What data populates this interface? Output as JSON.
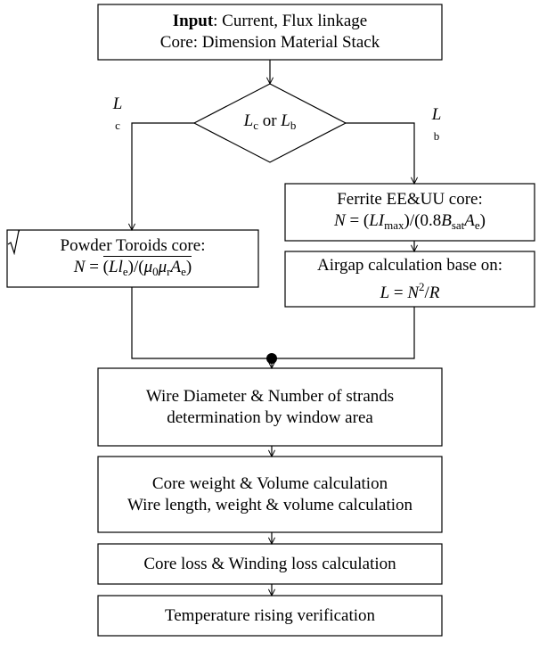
{
  "nodes": [
    {
      "lines": [
        [
          {
            "b": "Input"
          },
          {
            "t": ": Current, Flux linkage"
          }
        ],
        [
          {
            "t": "Core: Dimension Material Stack"
          }
        ]
      ]
    },
    {
      "lines": [
        [
          {
            "m": "L"
          },
          {
            "sub": "c"
          },
          {
            "t": " or "
          },
          {
            "m": "L"
          },
          {
            "sub": "b"
          }
        ]
      ]
    },
    {
      "lines": [
        [
          {
            "t": "Ferrite EE&UU core:"
          }
        ],
        [
          {
            "m": "N"
          },
          {
            "t": " = ("
          },
          {
            "m": "LI"
          },
          {
            "sub": "max"
          },
          {
            "t": ")/(0.8"
          },
          {
            "m": "B"
          },
          {
            "sub": "sat"
          },
          {
            "m": "A"
          },
          {
            "sub": "e"
          },
          {
            "t": ")"
          }
        ]
      ]
    },
    {
      "lines": [
        [
          {
            "t": "Airgap calculation base on:"
          }
        ],
        [
          {
            "m": "L"
          },
          {
            "t": " = "
          },
          {
            "m": "N"
          },
          {
            "sup": "2"
          },
          {
            "t": "/"
          },
          {
            "m": "R"
          }
        ]
      ]
    },
    {
      "lines": [
        [
          {
            "t": "Powder Toroids core:"
          }
        ],
        [
          {
            "m": "N"
          },
          {
            "t": " = "
          },
          {
            "sqrt": [
              {
                "t": "("
              },
              {
                "m": "Ll"
              },
              {
                "sub": "e"
              },
              {
                "t": ")/("
              },
              {
                "m": "μ"
              },
              {
                "sub": "0"
              },
              {
                "m": "μ"
              },
              {
                "sub": "r"
              },
              {
                "m": "A"
              },
              {
                "sub": "e"
              },
              {
                "t": ")"
              }
            ]
          }
        ]
      ]
    },
    {
      "lines": [
        [
          {
            "t": "Wire Diameter & Number of strands"
          }
        ],
        [
          {
            "t": "determination by window area"
          }
        ]
      ]
    },
    {
      "lines": [
        [
          {
            "t": "Core weight & Volume calculation"
          }
        ],
        [
          {
            "t": "Wire length, weight & volume calculation"
          }
        ]
      ]
    },
    {
      "lines": [
        [
          {
            "t": "Core loss & Winding loss calculation"
          }
        ]
      ]
    },
    {
      "lines": [
        [
          {
            "t": "Temperature rising verification"
          }
        ]
      ]
    }
  ],
  "edge_labels": [
    [
      {
        "m": "L"
      },
      {
        "sub": "c"
      }
    ],
    [
      {
        "m": "L"
      },
      {
        "sub": "b"
      }
    ]
  ]
}
